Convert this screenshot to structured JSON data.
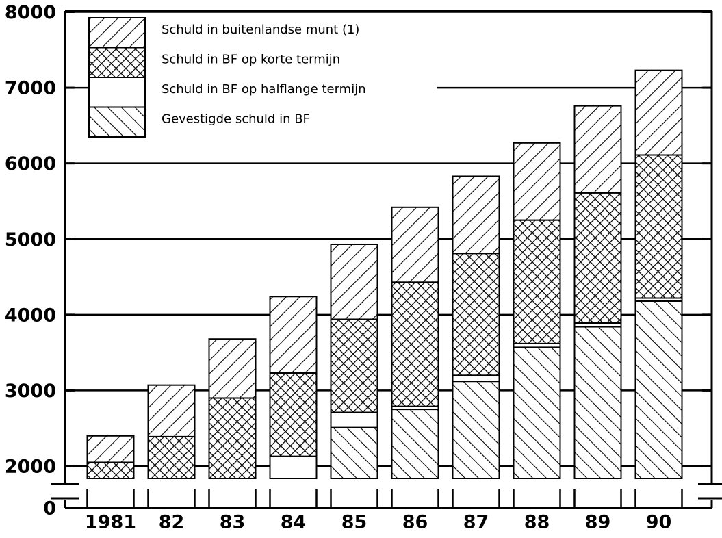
{
  "chart_data": {
    "type": "stacked_bar",
    "categories": [
      "1981",
      "82",
      "83",
      "84",
      "85",
      "86",
      "87",
      "88",
      "89",
      "90"
    ],
    "series": [
      {
        "name": "Gevestigde schuld in BF",
        "pattern": "back-hatch",
        "values": [
          1800,
          1800,
          1800,
          1920,
          2510,
          2750,
          3120,
          3570,
          3840,
          4180
        ]
      },
      {
        "name": "Schuld in BF op halflange termijn",
        "pattern": "blank",
        "values": [
          0,
          0,
          0,
          210,
          200,
          40,
          80,
          50,
          50,
          40
        ]
      },
      {
        "name": "Schuld in BF op korte termijn",
        "pattern": "cross-hatch",
        "values": [
          250,
          590,
          1100,
          1100,
          1230,
          1640,
          1610,
          1630,
          1720,
          1890
        ]
      },
      {
        "name": "Schuld in buitenlandse munt (1)",
        "pattern": "forward-hatch",
        "values": [
          350,
          680,
          780,
          1010,
          990,
          990,
          1020,
          1020,
          1150,
          1120
        ]
      }
    ],
    "ylim": [
      0,
      8000
    ],
    "yticks": [
      0,
      2000,
      3000,
      4000,
      5000,
      6000,
      7000,
      8000
    ],
    "axis_break": true,
    "grid": true
  }
}
